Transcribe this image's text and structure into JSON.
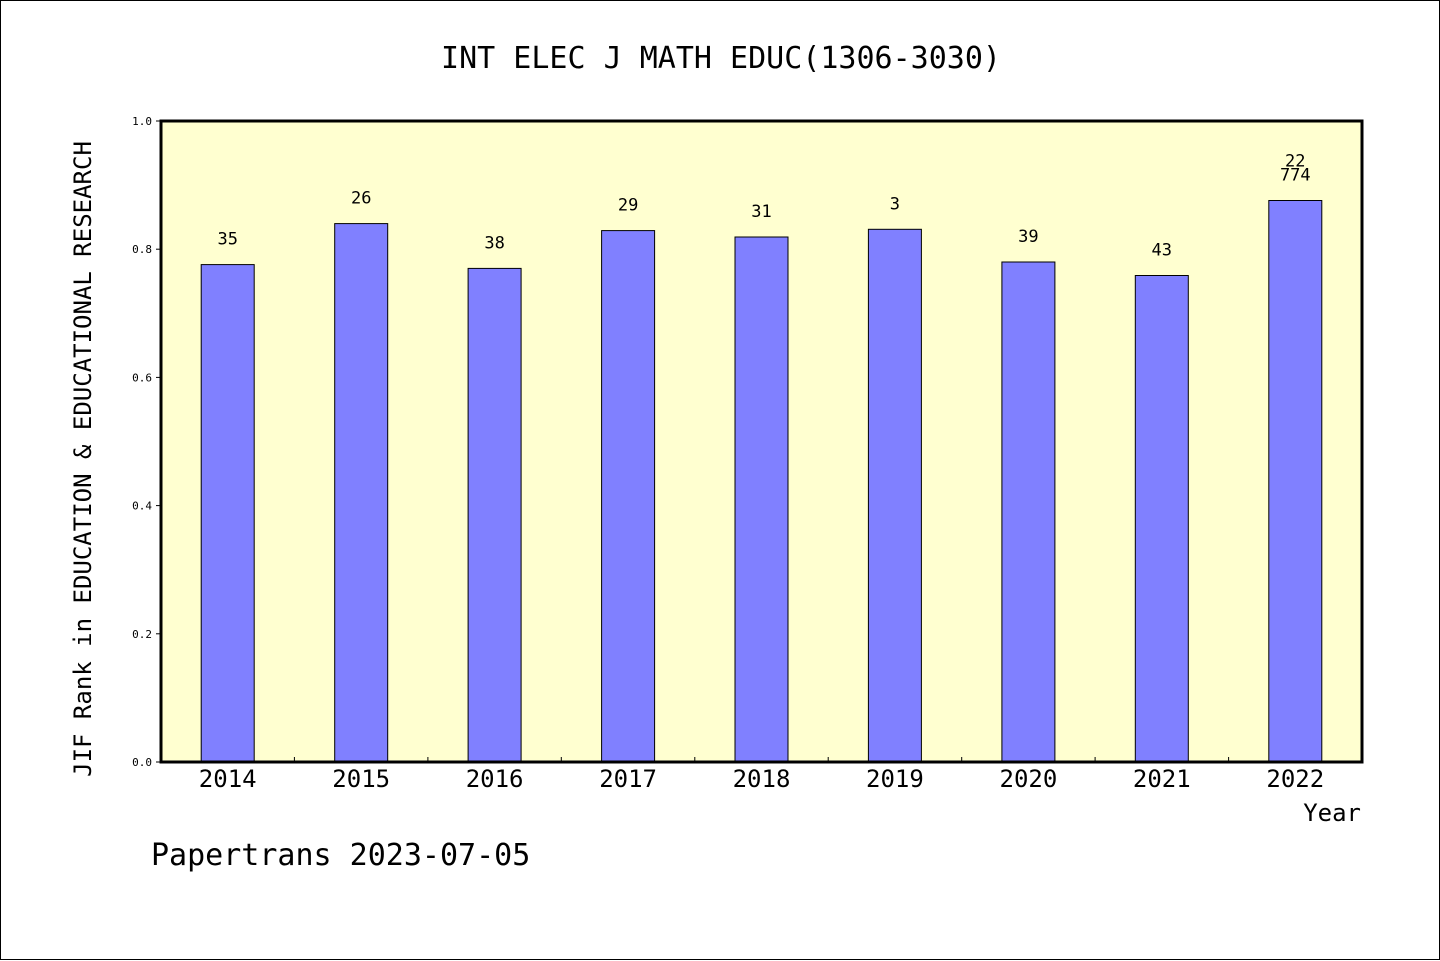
{
  "footer": {
    "text": "Papertrans 2023-07-05"
  },
  "colors": {
    "plot_background": "#FFFFD0",
    "bar_fill": "#8080FF",
    "axis": "#000000"
  },
  "chart_data": {
    "type": "bar",
    "title": "INT ELEC J MATH EDUC(1306-3030)",
    "xlabel": "Year",
    "ylabel": "JIF Rank in EDUCATION & EDUCATIONAL RESEARCH",
    "ylim": [
      0,
      1.0
    ],
    "yticks": [
      "0.0",
      "0.2",
      "0.4",
      "0.6",
      "0.8",
      "1.0"
    ],
    "grid": false,
    "categories": [
      "2014",
      "2015",
      "2016",
      "2017",
      "2018",
      "2019",
      "2020",
      "2021",
      "2022"
    ],
    "values": [
      0.776,
      0.84,
      0.77,
      0.829,
      0.819,
      0.831,
      0.78,
      0.759,
      0.876
    ],
    "bar_labels": [
      [
        "35"
      ],
      [
        "26"
      ],
      [
        "38"
      ],
      [
        "29"
      ],
      [
        "31"
      ],
      [
        "3"
      ],
      [
        "39"
      ],
      [
        "43"
      ],
      [
        "22",
        "774"
      ]
    ]
  }
}
